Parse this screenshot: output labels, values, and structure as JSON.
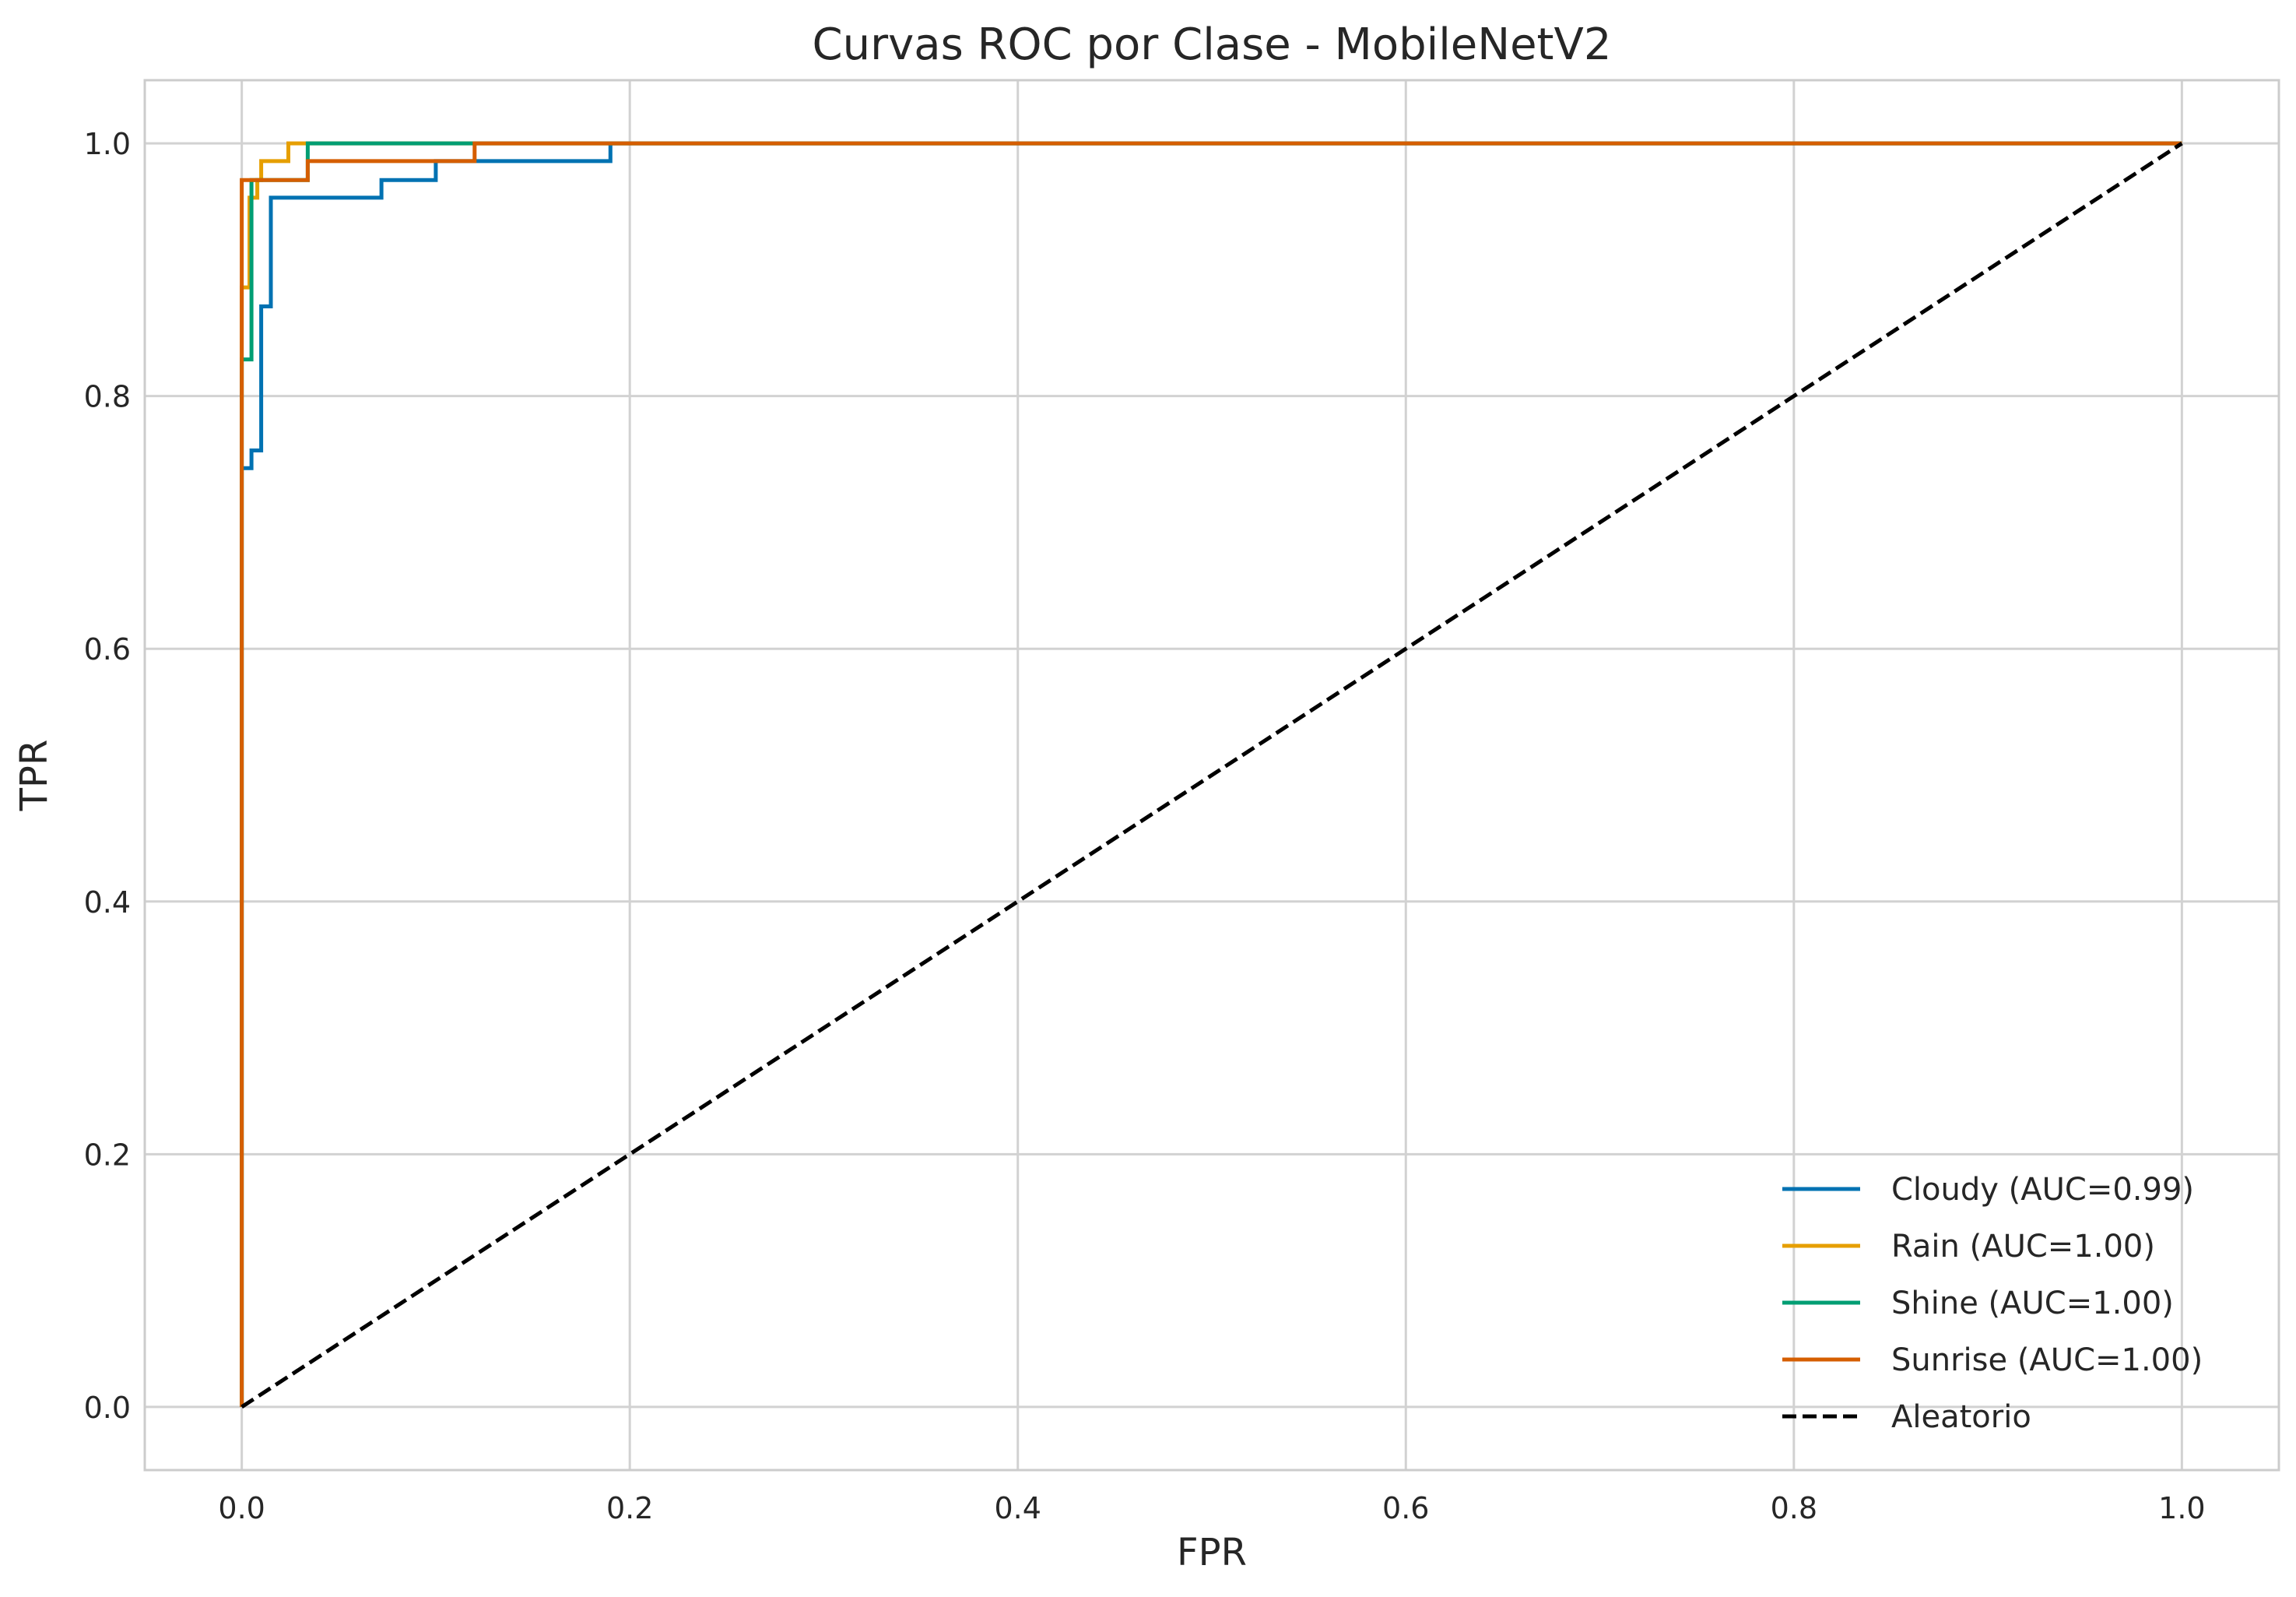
{
  "chart_data": {
    "type": "line",
    "title": "Curvas ROC por Clase - MobileNetV2",
    "xlabel": "FPR",
    "ylabel": "TPR",
    "xlim": [
      -0.05,
      1.05
    ],
    "ylim": [
      -0.05,
      1.05
    ],
    "xticks": [
      0.0,
      0.2,
      0.4,
      0.6,
      0.8,
      1.0
    ],
    "xtick_labels": [
      "0.0",
      "0.2",
      "0.4",
      "0.6",
      "0.8",
      "1.0"
    ],
    "yticks": [
      0.0,
      0.2,
      0.4,
      0.6,
      0.8,
      1.0
    ],
    "ytick_labels": [
      "0.0",
      "0.2",
      "0.4",
      "0.6",
      "0.8",
      "1.0"
    ],
    "grid": true,
    "legend_position": "lower-right",
    "series": [
      {
        "name": "Cloudy (AUC=0.99)",
        "color": "#0072b2",
        "dash": "solid",
        "x": [
          0,
          0,
          0.005,
          0.005,
          0.01,
          0.01,
          0.015,
          0.015,
          0.072,
          0.072,
          0.1,
          0.1,
          0.19,
          0.19,
          1
        ],
        "y": [
          0,
          0.743,
          0.743,
          0.757,
          0.757,
          0.871,
          0.871,
          0.957,
          0.957,
          0.971,
          0.971,
          0.986,
          0.986,
          1,
          1
        ]
      },
      {
        "name": "Rain (AUC=1.00)",
        "color": "#e69f00",
        "dash": "solid",
        "x": [
          0,
          0,
          0.004,
          0.004,
          0.008,
          0.008,
          0.01,
          0.01,
          0.024,
          0.024,
          1
        ],
        "y": [
          0,
          0.886,
          0.886,
          0.957,
          0.957,
          0.971,
          0.971,
          0.986,
          0.986,
          1,
          1
        ]
      },
      {
        "name": "Shine (AUC=1.00)",
        "color": "#009e73",
        "dash": "solid",
        "x": [
          0,
          0,
          0.005,
          0.005,
          0.034,
          0.034,
          1
        ],
        "y": [
          0,
          0.829,
          0.829,
          0.971,
          0.971,
          1,
          1
        ]
      },
      {
        "name": "Sunrise (AUC=1.00)",
        "color": "#d55e00",
        "dash": "solid",
        "x": [
          0,
          0,
          0.034,
          0.034,
          0.12,
          0.12,
          1
        ],
        "y": [
          0,
          0.971,
          0.971,
          0.986,
          0.986,
          1,
          1
        ]
      },
      {
        "name": "Aleatorio",
        "color": "#000000",
        "dash": "dashed",
        "x": [
          0,
          1
        ],
        "y": [
          0,
          1
        ]
      }
    ]
  }
}
